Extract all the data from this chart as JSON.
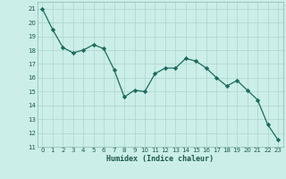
{
  "x": [
    0,
    1,
    2,
    3,
    4,
    5,
    6,
    7,
    8,
    9,
    10,
    11,
    12,
    13,
    14,
    15,
    16,
    17,
    18,
    19,
    20,
    21,
    22,
    23
  ],
  "y": [
    21.0,
    19.5,
    18.2,
    17.8,
    18.0,
    18.4,
    18.1,
    16.6,
    14.6,
    15.1,
    15.0,
    16.3,
    16.7,
    16.7,
    17.4,
    17.2,
    16.7,
    16.0,
    15.4,
    15.8,
    15.1,
    14.4,
    12.6,
    11.5
  ],
  "line_color": "#1a6b5e",
  "marker": "D",
  "marker_size": 2.2,
  "bg_color": "#cceee8",
  "grid_color_major": "#aad4cc",
  "grid_color_minor": "#bbddd7",
  "xlabel": "Humidex (Indice chaleur)",
  "xlim": [
    -0.5,
    23.5
  ],
  "ylim": [
    11,
    21.5
  ],
  "yticks": [
    11,
    12,
    13,
    14,
    15,
    16,
    17,
    18,
    19,
    20,
    21
  ],
  "xticks": [
    0,
    1,
    2,
    3,
    4,
    5,
    6,
    7,
    8,
    9,
    10,
    11,
    12,
    13,
    14,
    15,
    16,
    17,
    18,
    19,
    20,
    21,
    22,
    23
  ]
}
